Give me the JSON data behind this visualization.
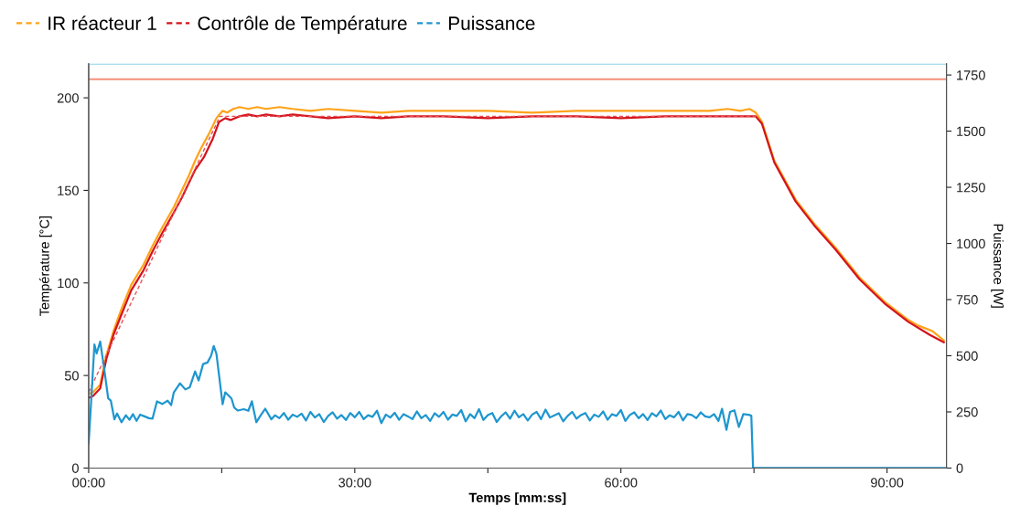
{
  "chart_data": {
    "type": "line",
    "xlabel": "Temps [mm:ss]",
    "ylabel": "Température [°C]",
    "y2label": "Puissance [W]",
    "xlim": [
      0,
      96.7
    ],
    "ylim": [
      0,
      218.4
    ],
    "y2lim": [
      0,
      1800
    ],
    "xticks": [
      {
        "value": 0,
        "label": "00:00"
      },
      {
        "value": 15,
        "label": null
      },
      {
        "value": 30,
        "label": "30:00"
      },
      {
        "value": 45,
        "label": null
      },
      {
        "value": 60,
        "label": "60:00"
      },
      {
        "value": 75,
        "label": null
      },
      {
        "value": 90,
        "label": "90:00"
      }
    ],
    "yticks": [
      0,
      50,
      100,
      150,
      200
    ],
    "y2ticks": [
      0,
      250,
      500,
      750,
      1000,
      1250,
      1500,
      1750
    ],
    "grid": false,
    "legend": "top left",
    "marker": "none",
    "ref_lines": [
      {
        "axis": "y2",
        "value": 1800,
        "color": "#8fd0e8"
      },
      {
        "axis": "y",
        "value": 210,
        "color": "#f4907a"
      }
    ],
    "series": [
      {
        "name": "IR réacteur 1",
        "color": "#ffa31a",
        "line_style": "solid",
        "x": [
          0,
          0.5,
          1.3,
          2.0,
          2.8,
          3.7,
          4.8,
          6.2,
          7.2,
          8.3,
          9.6,
          10.5,
          11.3,
          12.0,
          12.7,
          13.5,
          14.4,
          15.1,
          15.6,
          16.3,
          17.0,
          18.0,
          19.0,
          20.0,
          21.5,
          23.0,
          25.0,
          27.0,
          30.0,
          33.0,
          36.0,
          40.0,
          45.0,
          50.0,
          55.0,
          60.0,
          65.0,
          70.0,
          72.0,
          73.5,
          74.5,
          75.2,
          75.9,
          77.3,
          79.7,
          81.8,
          84.2,
          86.9,
          89.7,
          92.4,
          93.5,
          95.1,
          96.4
        ],
        "values": [
          40,
          41,
          45,
          61,
          74,
          86,
          99,
          110,
          120,
          130,
          141,
          150,
          158,
          166,
          173,
          180,
          189,
          193,
          192,
          194,
          195,
          194,
          195,
          194,
          195,
          194,
          193,
          194,
          193,
          192,
          193,
          193,
          193,
          192,
          193,
          193,
          193,
          193,
          194,
          193,
          194,
          192,
          187,
          166,
          145,
          132,
          119,
          103,
          90,
          80,
          77,
          74,
          69
        ]
      },
      {
        "name": "Contrôle de Température",
        "color": "#d4141c",
        "line_style": "solid",
        "x": [
          0,
          0.5,
          1.3,
          2.0,
          2.8,
          3.7,
          4.8,
          6.2,
          7.2,
          8.3,
          9.6,
          10.5,
          11.3,
          12.0,
          13.0,
          14.0,
          14.7,
          15.4,
          16.0,
          17.0,
          18.0,
          19.0,
          20.0,
          21.5,
          23.0,
          25.0,
          27.0,
          30.0,
          33.0,
          36.0,
          40.0,
          45.0,
          50.0,
          55.0,
          60.0,
          65.0,
          70.0,
          72.0,
          73.5,
          75.2,
          75.9,
          77.3,
          79.7,
          81.8,
          84.2,
          86.9,
          89.7,
          92.4,
          94.8,
          96.4
        ],
        "values": [
          38,
          39,
          43,
          59,
          72,
          83,
          96,
          107,
          117,
          127,
          138,
          146,
          154,
          161,
          168,
          178,
          187,
          189,
          188,
          190,
          191,
          190,
          191,
          190,
          191,
          190,
          189,
          190,
          189,
          190,
          190,
          189,
          190,
          190,
          189,
          190,
          190,
          190,
          190,
          190,
          186,
          165,
          144,
          131,
          118,
          102,
          89,
          79,
          72,
          68
        ]
      },
      {
        "color": "#e8505a",
        "line_style": "dashed",
        "x": [
          0,
          14.8,
          75.2
        ],
        "values": [
          41,
          190,
          190
        ]
      },
      {
        "name": "Puissance",
        "color": "#1e96cf",
        "line_style": "solid",
        "axis": "y2",
        "x": [
          0,
          0.3,
          0.65,
          0.9,
          1.3,
          1.7,
          2.2,
          2.5,
          2.9,
          3.2,
          3.7,
          4.2,
          4.6,
          5.0,
          5.4,
          5.8,
          6.3,
          6.8,
          7.2,
          7.7,
          8.3,
          8.9,
          9.3,
          9.6,
          10.3,
          10.9,
          11.4,
          12.0,
          12.4,
          12.9,
          13.4,
          13.8,
          14.1,
          14.4,
          15.1,
          15.4,
          16.1,
          16.4,
          16.8,
          17.5,
          18.0,
          18.4,
          18.9,
          19.4,
          19.9,
          20.6,
          21.0,
          21.5,
          22.0,
          22.5,
          23.0,
          23.5,
          24.0,
          24.5,
          25.0,
          25.5,
          26.0,
          26.5,
          27.0,
          27.5,
          28.0,
          28.5,
          29.0,
          29.5,
          30.0,
          30.5,
          31.0,
          31.5,
          32.0,
          32.5,
          33.0,
          33.5,
          34.0,
          34.5,
          35.0,
          35.5,
          36.0,
          36.5,
          37.0,
          37.5,
          38.0,
          38.5,
          39.0,
          39.5,
          40.0,
          40.5,
          41.0,
          41.5,
          42.0,
          42.5,
          43.0,
          43.5,
          44.0,
          44.5,
          45.0,
          45.5,
          46.0,
          46.5,
          47.0,
          47.5,
          48.0,
          48.5,
          49.0,
          49.5,
          50.0,
          50.5,
          51.0,
          51.5,
          52.0,
          52.5,
          53.0,
          53.5,
          54.0,
          54.5,
          55.0,
          55.5,
          56.0,
          56.5,
          57.0,
          57.5,
          58.0,
          58.5,
          59.0,
          59.5,
          60.0,
          60.5,
          61.0,
          61.5,
          62.0,
          62.5,
          63.0,
          63.5,
          64.0,
          64.5,
          65.0,
          65.5,
          66.0,
          66.5,
          67.0,
          67.5,
          68.0,
          68.5,
          69.0,
          69.5,
          70.0,
          70.5,
          71.0,
          71.4,
          71.9,
          72.3,
          72.8,
          73.3,
          73.8,
          74.4,
          74.7,
          74.9,
          96.7
        ],
        "values": [
          110,
          310,
          550,
          510,
          563,
          457,
          310,
          300,
          217,
          243,
          204,
          235,
          215,
          240,
          210,
          238,
          230,
          222,
          220,
          297,
          285,
          300,
          280,
          337,
          377,
          350,
          360,
          430,
          390,
          463,
          470,
          500,
          543,
          510,
          284,
          337,
          310,
          270,
          256,
          262,
          255,
          297,
          204,
          235,
          264,
          217,
          235,
          222,
          245,
          215,
          238,
          228,
          242,
          212,
          250,
          225,
          240,
          205,
          232,
          248,
          220,
          236,
          214,
          245,
          226,
          250,
          218,
          235,
          228,
          255,
          200,
          238,
          225,
          246,
          215,
          240,
          230,
          218,
          252,
          222,
          236,
          210,
          244,
          228,
          250,
          215,
          238,
          232,
          258,
          208,
          240,
          222,
          262,
          214,
          236,
          245,
          205,
          230,
          248,
          220,
          255,
          226,
          240,
          212,
          238,
          250,
          218,
          260,
          225,
          235,
          244,
          208,
          232,
          250,
          220,
          236,
          245,
          212,
          238,
          228,
          252,
          215,
          240,
          232,
          258,
          210,
          236,
          248,
          222,
          240,
          214,
          244,
          230,
          256,
          218,
          235,
          226,
          250,
          212,
          240,
          236,
          222,
          248,
          230,
          226,
          240,
          210,
          264,
          170,
          250,
          257,
          183,
          240,
          237,
          233,
          0,
          0
        ]
      }
    ]
  }
}
